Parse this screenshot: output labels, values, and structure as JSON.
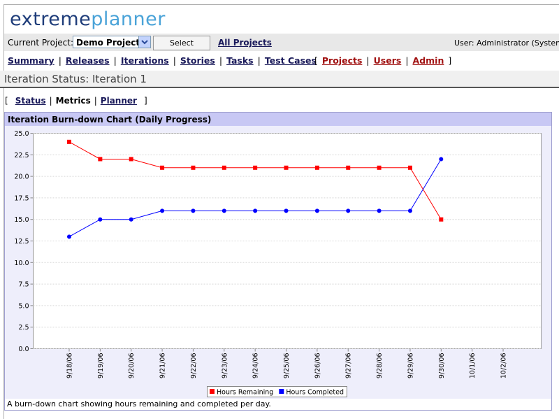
{
  "header": {
    "logo": [
      "extreme",
      "planner"
    ]
  },
  "project_bar": {
    "label": "Current Project:",
    "project": "Demo Project",
    "button": "Select",
    "link": "All Projects",
    "user": "User: Administrator (System Adm"
  },
  "nav": {
    "links": [
      "Summary",
      "Releases",
      "Iterations",
      "Stories",
      "Tasks",
      "Test Cases"
    ],
    "admin_links": [
      "Projects",
      "Users",
      "Admin"
    ],
    "separator": "|",
    "open": "[",
    "close": "]"
  },
  "page_title": "Iteration Status: Iteration 1",
  "tabs": {
    "links": [
      "Status",
      "Metrics",
      "Planner"
    ],
    "current": 1
  },
  "panel": {
    "title": "Iteration Burn-down Chart (Daily Progress)",
    "caption": "A burn-down chart showing hours remaining and completed per day."
  },
  "chart_data": {
    "type": "line",
    "categories": [
      "9/18/06",
      "9/19/06",
      "9/20/06",
      "9/21/06",
      "9/22/06",
      "9/23/06",
      "9/24/06",
      "9/25/06",
      "9/26/06",
      "9/27/06",
      "9/28/06",
      "9/29/06",
      "9/30/06",
      "10/1/06",
      "10/2/06"
    ],
    "series": [
      {
        "name": "Hours Remaining",
        "color": "#ff0000",
        "values": [
          24,
          22,
          22,
          21,
          21,
          21,
          21,
          21,
          21,
          21,
          21,
          21,
          15,
          null,
          null
        ]
      },
      {
        "name": "Hours Completed",
        "color": "#0000ff",
        "values": [
          13,
          15,
          15,
          16,
          16,
          16,
          16,
          16,
          16,
          16,
          16,
          16,
          22,
          null,
          null
        ]
      }
    ],
    "ylim": [
      0,
      25
    ],
    "yticks": [
      {
        "value": 0,
        "label": "0.0"
      },
      {
        "value": 2.5,
        "label": "2.5"
      },
      {
        "value": 5,
        "label": "5.0"
      },
      {
        "value": 7.5,
        "label": "7.5"
      },
      {
        "value": 10,
        "label": "10.0"
      },
      {
        "value": 12.5,
        "label": "12.5"
      },
      {
        "value": 15,
        "label": "15.0"
      },
      {
        "value": 17.5,
        "label": "17.5"
      },
      {
        "value": 20,
        "label": "20.0"
      },
      {
        "value": 22.5,
        "label": "22.5"
      },
      {
        "value": 25,
        "label": "25.0"
      }
    ],
    "grid": true,
    "legend": "bottom"
  }
}
